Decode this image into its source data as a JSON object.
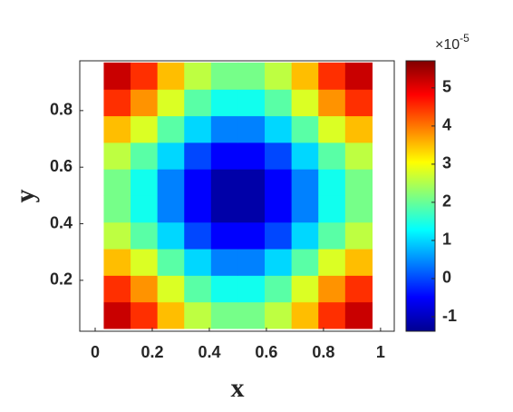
{
  "chart_data": {
    "type": "heatmap",
    "x_label": "x",
    "y_label": "y",
    "x": [
      0.077,
      0.171,
      0.265,
      0.359,
      0.453,
      0.547,
      0.641,
      0.735,
      0.829,
      0.923
    ],
    "y": [
      0.077,
      0.171,
      0.265,
      0.359,
      0.453,
      0.547,
      0.641,
      0.735,
      0.829,
      0.923
    ],
    "values": [
      [
        5.2,
        4.5,
        3.5,
        2.6,
        2.1,
        2.1,
        2.6,
        3.5,
        4.5,
        5.2
      ],
      [
        4.5,
        3.8,
        2.8,
        1.9,
        1.4,
        1.4,
        1.9,
        2.8,
        3.8,
        4.5
      ],
      [
        3.5,
        2.8,
        1.9,
        1.0,
        0.4,
        0.4,
        1.0,
        1.9,
        2.8,
        3.5
      ],
      [
        2.6,
        1.9,
        1.0,
        0.0,
        -0.5,
        -0.5,
        0.0,
        1.0,
        1.9,
        2.6
      ],
      [
        2.1,
        1.4,
        0.4,
        -0.5,
        -1.1,
        -1.1,
        -0.5,
        0.4,
        1.4,
        2.1
      ],
      [
        2.1,
        1.4,
        0.4,
        -0.5,
        -1.1,
        -1.1,
        -0.5,
        0.4,
        1.4,
        2.1
      ],
      [
        2.6,
        1.9,
        1.0,
        0.0,
        -0.5,
        -0.5,
        0.0,
        1.0,
        1.9,
        2.6
      ],
      [
        3.5,
        2.8,
        1.9,
        1.0,
        0.4,
        0.4,
        1.0,
        1.9,
        2.8,
        3.5
      ],
      [
        4.5,
        3.8,
        2.8,
        1.9,
        1.4,
        1.4,
        1.9,
        2.8,
        3.8,
        4.5
      ],
      [
        5.2,
        4.5,
        3.5,
        2.6,
        2.1,
        2.1,
        2.6,
        3.5,
        4.5,
        5.2
      ]
    ],
    "xlim": [
      -0.054,
      1.048
    ],
    "ylim": [
      0.02,
      0.976
    ],
    "xticks": [
      0,
      0.2,
      0.4,
      0.6,
      0.8,
      1
    ],
    "yticks": [
      0.2,
      0.4,
      0.6,
      0.8
    ],
    "colormap": "jet",
    "clim": [
      -1.38,
      5.71
    ],
    "cticks": [
      -1,
      0,
      1,
      2,
      3,
      4,
      5
    ],
    "colorbar_multiplier": "×10",
    "colorbar_exponent": "-5"
  }
}
